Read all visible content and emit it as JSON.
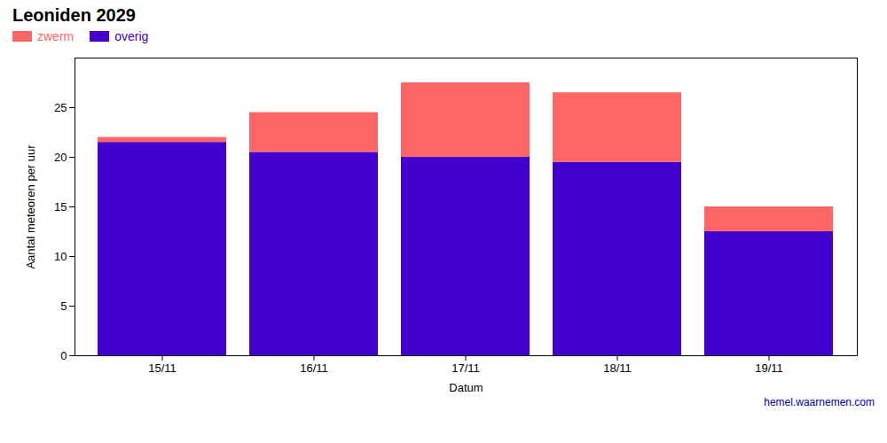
{
  "chart_data": {
    "type": "bar",
    "stacked": true,
    "title": "Leoniden 2029",
    "xlabel": "Datum",
    "ylabel": "Aantal meteoren per uur",
    "categories": [
      "15/11",
      "16/11",
      "17/11",
      "18/11",
      "19/11"
    ],
    "series": [
      {
        "name": "overig",
        "color": "#4400CC",
        "values": [
          21.5,
          20.5,
          20.0,
          19.5,
          12.5
        ]
      },
      {
        "name": "zwerm",
        "color": "#FF6666",
        "values": [
          0.5,
          4.0,
          7.5,
          7.0,
          2.5
        ]
      }
    ],
    "ylim": [
      0,
      30
    ],
    "yticks": [
      0,
      5,
      10,
      15,
      20,
      25
    ],
    "legend": "upper left",
    "annotations": [
      {
        "text": "hemel.waarnemen.com",
        "color": "#0000BB"
      }
    ]
  }
}
